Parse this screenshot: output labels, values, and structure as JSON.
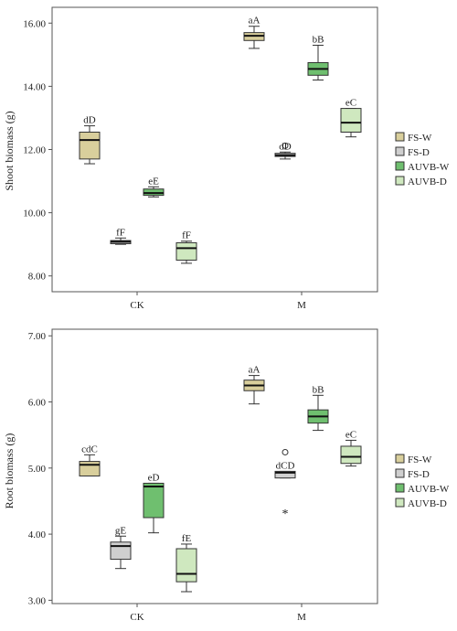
{
  "colors": {
    "FS-W": "#d9cf9c",
    "FS-D": "#cfcfcf",
    "AUVB-W": "#6fbf6f",
    "AUVB-D": "#cfe8bf",
    "frame": "#555555",
    "whisker": "#333333"
  },
  "chart_data": [
    {
      "type": "box",
      "ylabel": "Shoot biomass (g)",
      "categories": [
        "CK",
        "M"
      ],
      "ylim": [
        7.5,
        16.5
      ],
      "yticks": [
        8.0,
        10.0,
        12.0,
        14.0,
        16.0
      ],
      "ytick_labels": [
        "8.00",
        "10.00",
        "12.00",
        "14.00",
        "16.00"
      ],
      "legend": [
        "FS-W",
        "FS-D",
        "AUVB-W",
        "AUVB-D"
      ],
      "legend_placement": "right",
      "grid": false,
      "series": [
        {
          "name": "FS-W",
          "values": [
            {
              "category": "CK",
              "min": 11.55,
              "q1": 11.7,
              "median": 12.3,
              "q3": 12.55,
              "max": 12.75,
              "label": "dD"
            },
            {
              "category": "M",
              "min": 15.2,
              "q1": 15.45,
              "median": 15.6,
              "q3": 15.7,
              "max": 15.9,
              "label": "aA"
            }
          ]
        },
        {
          "name": "FS-D",
          "values": [
            {
              "category": "CK",
              "min": 9.0,
              "q1": 9.02,
              "median": 9.08,
              "q3": 9.12,
              "max": 9.2,
              "label": "fF"
            },
            {
              "category": "M",
              "min": 11.7,
              "q1": 11.78,
              "median": 11.82,
              "q3": 11.88,
              "max": 11.92,
              "label": "dD",
              "outliers": [
                12.12
              ]
            }
          ]
        },
        {
          "name": "AUVB-W",
          "values": [
            {
              "category": "CK",
              "min": 10.5,
              "q1": 10.55,
              "median": 10.62,
              "q3": 10.75,
              "max": 10.82,
              "label": "eE"
            },
            {
              "category": "M",
              "min": 14.2,
              "q1": 14.35,
              "median": 14.55,
              "q3": 14.75,
              "max": 15.3,
              "label": "bB"
            }
          ]
        },
        {
          "name": "AUVB-D",
          "values": [
            {
              "category": "CK",
              "min": 8.4,
              "q1": 8.5,
              "median": 8.88,
              "q3": 9.05,
              "max": 9.1,
              "label": "fF"
            },
            {
              "category": "M",
              "min": 12.4,
              "q1": 12.55,
              "median": 12.85,
              "q3": 13.3,
              "max": 13.3,
              "label": "eC"
            }
          ]
        }
      ]
    },
    {
      "type": "box",
      "ylabel": "Root biomass (g)",
      "categories": [
        "CK",
        "M"
      ],
      "ylim": [
        2.95,
        7.1
      ],
      "yticks": [
        3.0,
        4.0,
        5.0,
        6.0,
        7.0
      ],
      "ytick_labels": [
        "3.00",
        "4.00",
        "5.00",
        "6.00",
        "7.00"
      ],
      "legend": [
        "FS-W",
        "FS-D",
        "AUVB-W",
        "AUVB-D"
      ],
      "legend_placement": "right",
      "grid": false,
      "series": [
        {
          "name": "FS-W",
          "values": [
            {
              "category": "CK",
              "min": 4.88,
              "q1": 4.88,
              "median": 5.05,
              "q3": 5.1,
              "max": 5.2,
              "label": "cdC"
            },
            {
              "category": "M",
              "min": 5.97,
              "q1": 6.17,
              "median": 6.25,
              "q3": 6.33,
              "max": 6.4,
              "label": "aA"
            }
          ]
        },
        {
          "name": "FS-D",
          "values": [
            {
              "category": "CK",
              "min": 3.48,
              "q1": 3.62,
              "median": 3.82,
              "q3": 3.88,
              "max": 3.97,
              "label": "gE"
            },
            {
              "category": "M",
              "min": 4.85,
              "q1": 4.85,
              "median": 4.93,
              "q3": 4.95,
              "max": 4.95,
              "label": "dCD",
              "outliers": [
                5.24
              ],
              "extremes": [
                4.32
              ]
            }
          ]
        },
        {
          "name": "AUVB-W",
          "values": [
            {
              "category": "CK",
              "min": 4.02,
              "q1": 4.25,
              "median": 4.72,
              "q3": 4.77,
              "max": 4.77,
              "label": "eD"
            },
            {
              "category": "M",
              "min": 5.57,
              "q1": 5.68,
              "median": 5.78,
              "q3": 5.88,
              "max": 6.1,
              "label": "bB"
            }
          ]
        },
        {
          "name": "AUVB-D",
          "values": [
            {
              "category": "CK",
              "min": 3.13,
              "q1": 3.28,
              "median": 3.4,
              "q3": 3.78,
              "max": 3.85,
              "label": "fE"
            },
            {
              "category": "M",
              "min": 5.03,
              "q1": 5.07,
              "median": 5.17,
              "q3": 5.33,
              "max": 5.42,
              "label": "eC"
            }
          ]
        }
      ]
    }
  ]
}
